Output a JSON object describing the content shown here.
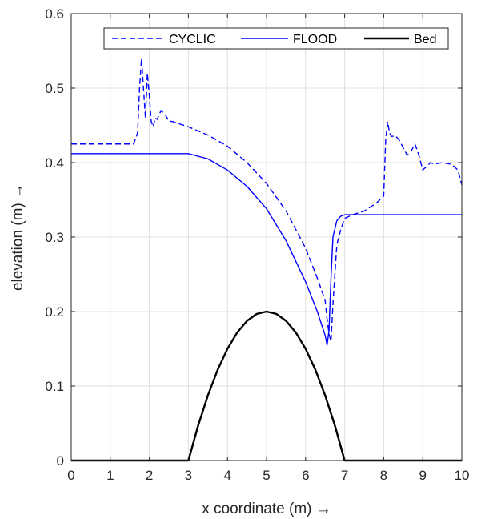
{
  "chart_data": {
    "type": "line",
    "title": "",
    "xlabel": "x coordinate (m) →",
    "ylabel": "elevation (m) →",
    "xlim": [
      0,
      10
    ],
    "ylim": [
      0,
      0.6
    ],
    "xticks": [
      0,
      1,
      2,
      3,
      4,
      5,
      6,
      7,
      8,
      9,
      10
    ],
    "yticks": [
      0,
      0.1,
      0.2,
      0.3,
      0.4,
      0.5,
      0.6
    ],
    "xtick_labels": [
      "0",
      "1",
      "2",
      "3",
      "4",
      "5",
      "6",
      "7",
      "8",
      "9",
      "10"
    ],
    "ytick_labels": [
      "0",
      "0.1",
      "0.2",
      "0.3",
      "0.4",
      "0.5",
      "0.6"
    ],
    "grid": true,
    "legend_position": "top-right",
    "series": [
      {
        "name": "CYCLIC",
        "color": "#0000ff",
        "dash": "dashed",
        "x": [
          0,
          1.6,
          1.7,
          1.75,
          1.8,
          1.85,
          1.9,
          1.95,
          2.0,
          2.05,
          2.1,
          2.15,
          2.2,
          2.3,
          2.4,
          2.5,
          2.6,
          3.0,
          3.5,
          4.0,
          4.5,
          5.0,
          5.5,
          6.0,
          6.3,
          6.5,
          6.55,
          6.6,
          6.65,
          6.7,
          6.8,
          6.9,
          7.0,
          7.2,
          7.5,
          7.8,
          8.0,
          8.05,
          8.1,
          8.15,
          8.2,
          8.3,
          8.4,
          8.5,
          8.6,
          8.7,
          8.8,
          8.9,
          9.0,
          9.1,
          9.2,
          9.3,
          9.5,
          9.7,
          9.8,
          9.9,
          10.0
        ],
        "y": [
          0.425,
          0.425,
          0.44,
          0.5,
          0.54,
          0.5,
          0.46,
          0.52,
          0.49,
          0.455,
          0.448,
          0.46,
          0.458,
          0.47,
          0.465,
          0.456,
          0.455,
          0.448,
          0.437,
          0.422,
          0.4,
          0.372,
          0.335,
          0.285,
          0.245,
          0.215,
          0.19,
          0.17,
          0.16,
          0.21,
          0.29,
          0.31,
          0.325,
          0.33,
          0.335,
          0.345,
          0.355,
          0.43,
          0.455,
          0.44,
          0.435,
          0.436,
          0.43,
          0.42,
          0.41,
          0.415,
          0.425,
          0.41,
          0.39,
          0.395,
          0.4,
          0.398,
          0.4,
          0.398,
          0.395,
          0.39,
          0.37
        ]
      },
      {
        "name": "FLOOD",
        "color": "#0000ff",
        "dash": "solid",
        "x": [
          0,
          1,
          2,
          3,
          3.5,
          4.0,
          4.5,
          5.0,
          5.5,
          6.0,
          6.3,
          6.5,
          6.55,
          6.6,
          6.65,
          6.7,
          6.8,
          6.9,
          7.0,
          7.5,
          8.0,
          9.0,
          10.0
        ],
        "y": [
          0.412,
          0.412,
          0.412,
          0.412,
          0.405,
          0.39,
          0.368,
          0.338,
          0.295,
          0.24,
          0.2,
          0.168,
          0.155,
          0.175,
          0.245,
          0.3,
          0.322,
          0.328,
          0.33,
          0.33,
          0.33,
          0.33,
          0.33
        ]
      },
      {
        "name": "Bed",
        "color": "#000000",
        "dash": "solid",
        "x": [
          0,
          3.0,
          3.25,
          3.5,
          3.75,
          4.0,
          4.25,
          4.5,
          4.75,
          5.0,
          5.25,
          5.5,
          5.75,
          6.0,
          6.25,
          6.5,
          6.75,
          7.0,
          10.0
        ],
        "y": [
          0,
          0,
          0.0469,
          0.0875,
          0.1219,
          0.15,
          0.1719,
          0.1875,
          0.1969,
          0.2,
          0.1969,
          0.1875,
          0.1719,
          0.15,
          0.1219,
          0.0875,
          0.0469,
          0,
          0
        ]
      }
    ]
  }
}
